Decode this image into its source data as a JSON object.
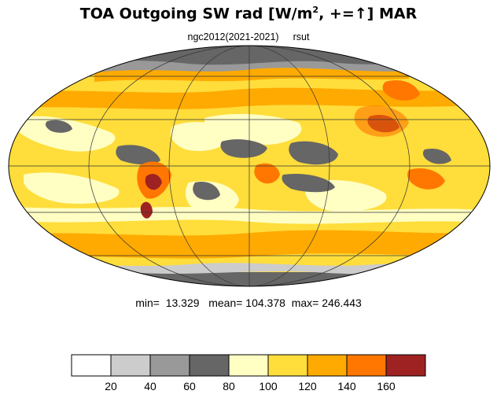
{
  "title": {
    "prefix": "TOA Outgoing SW rad [W/m",
    "superscript": "2",
    "middle": ", +=",
    "arrow": "↑",
    "suffix": "] MAR"
  },
  "subtitle": {
    "case": "ngc2012(2021-2021)",
    "variable": "rsut"
  },
  "stats": {
    "min_label": "min=",
    "min": "13.329",
    "mean_label": "mean=",
    "mean": "104.378",
    "max_label": "max=",
    "max": "246.443"
  },
  "colorbar": {
    "colors": [
      "#ffffff",
      "#cccccc",
      "#999999",
      "#666666",
      "#ffffc4",
      "#ffdd3b",
      "#ffaa00",
      "#ff7700",
      "#9e2222"
    ],
    "ticks": [
      "20",
      "40",
      "60",
      "80",
      "100",
      "120",
      "140",
      "160"
    ]
  },
  "map": {
    "projection": "Mollweide",
    "palette": {
      "white": "#ffffff",
      "light_gray": "#cccccc",
      "mid_gray": "#999999",
      "dark_gray": "#666666",
      "pale_yellow": "#ffffc4",
      "yellow": "#ffdd3b",
      "orange": "#ffaa00",
      "dark_orange": "#ff7700",
      "dark_red": "#9e2222"
    }
  }
}
